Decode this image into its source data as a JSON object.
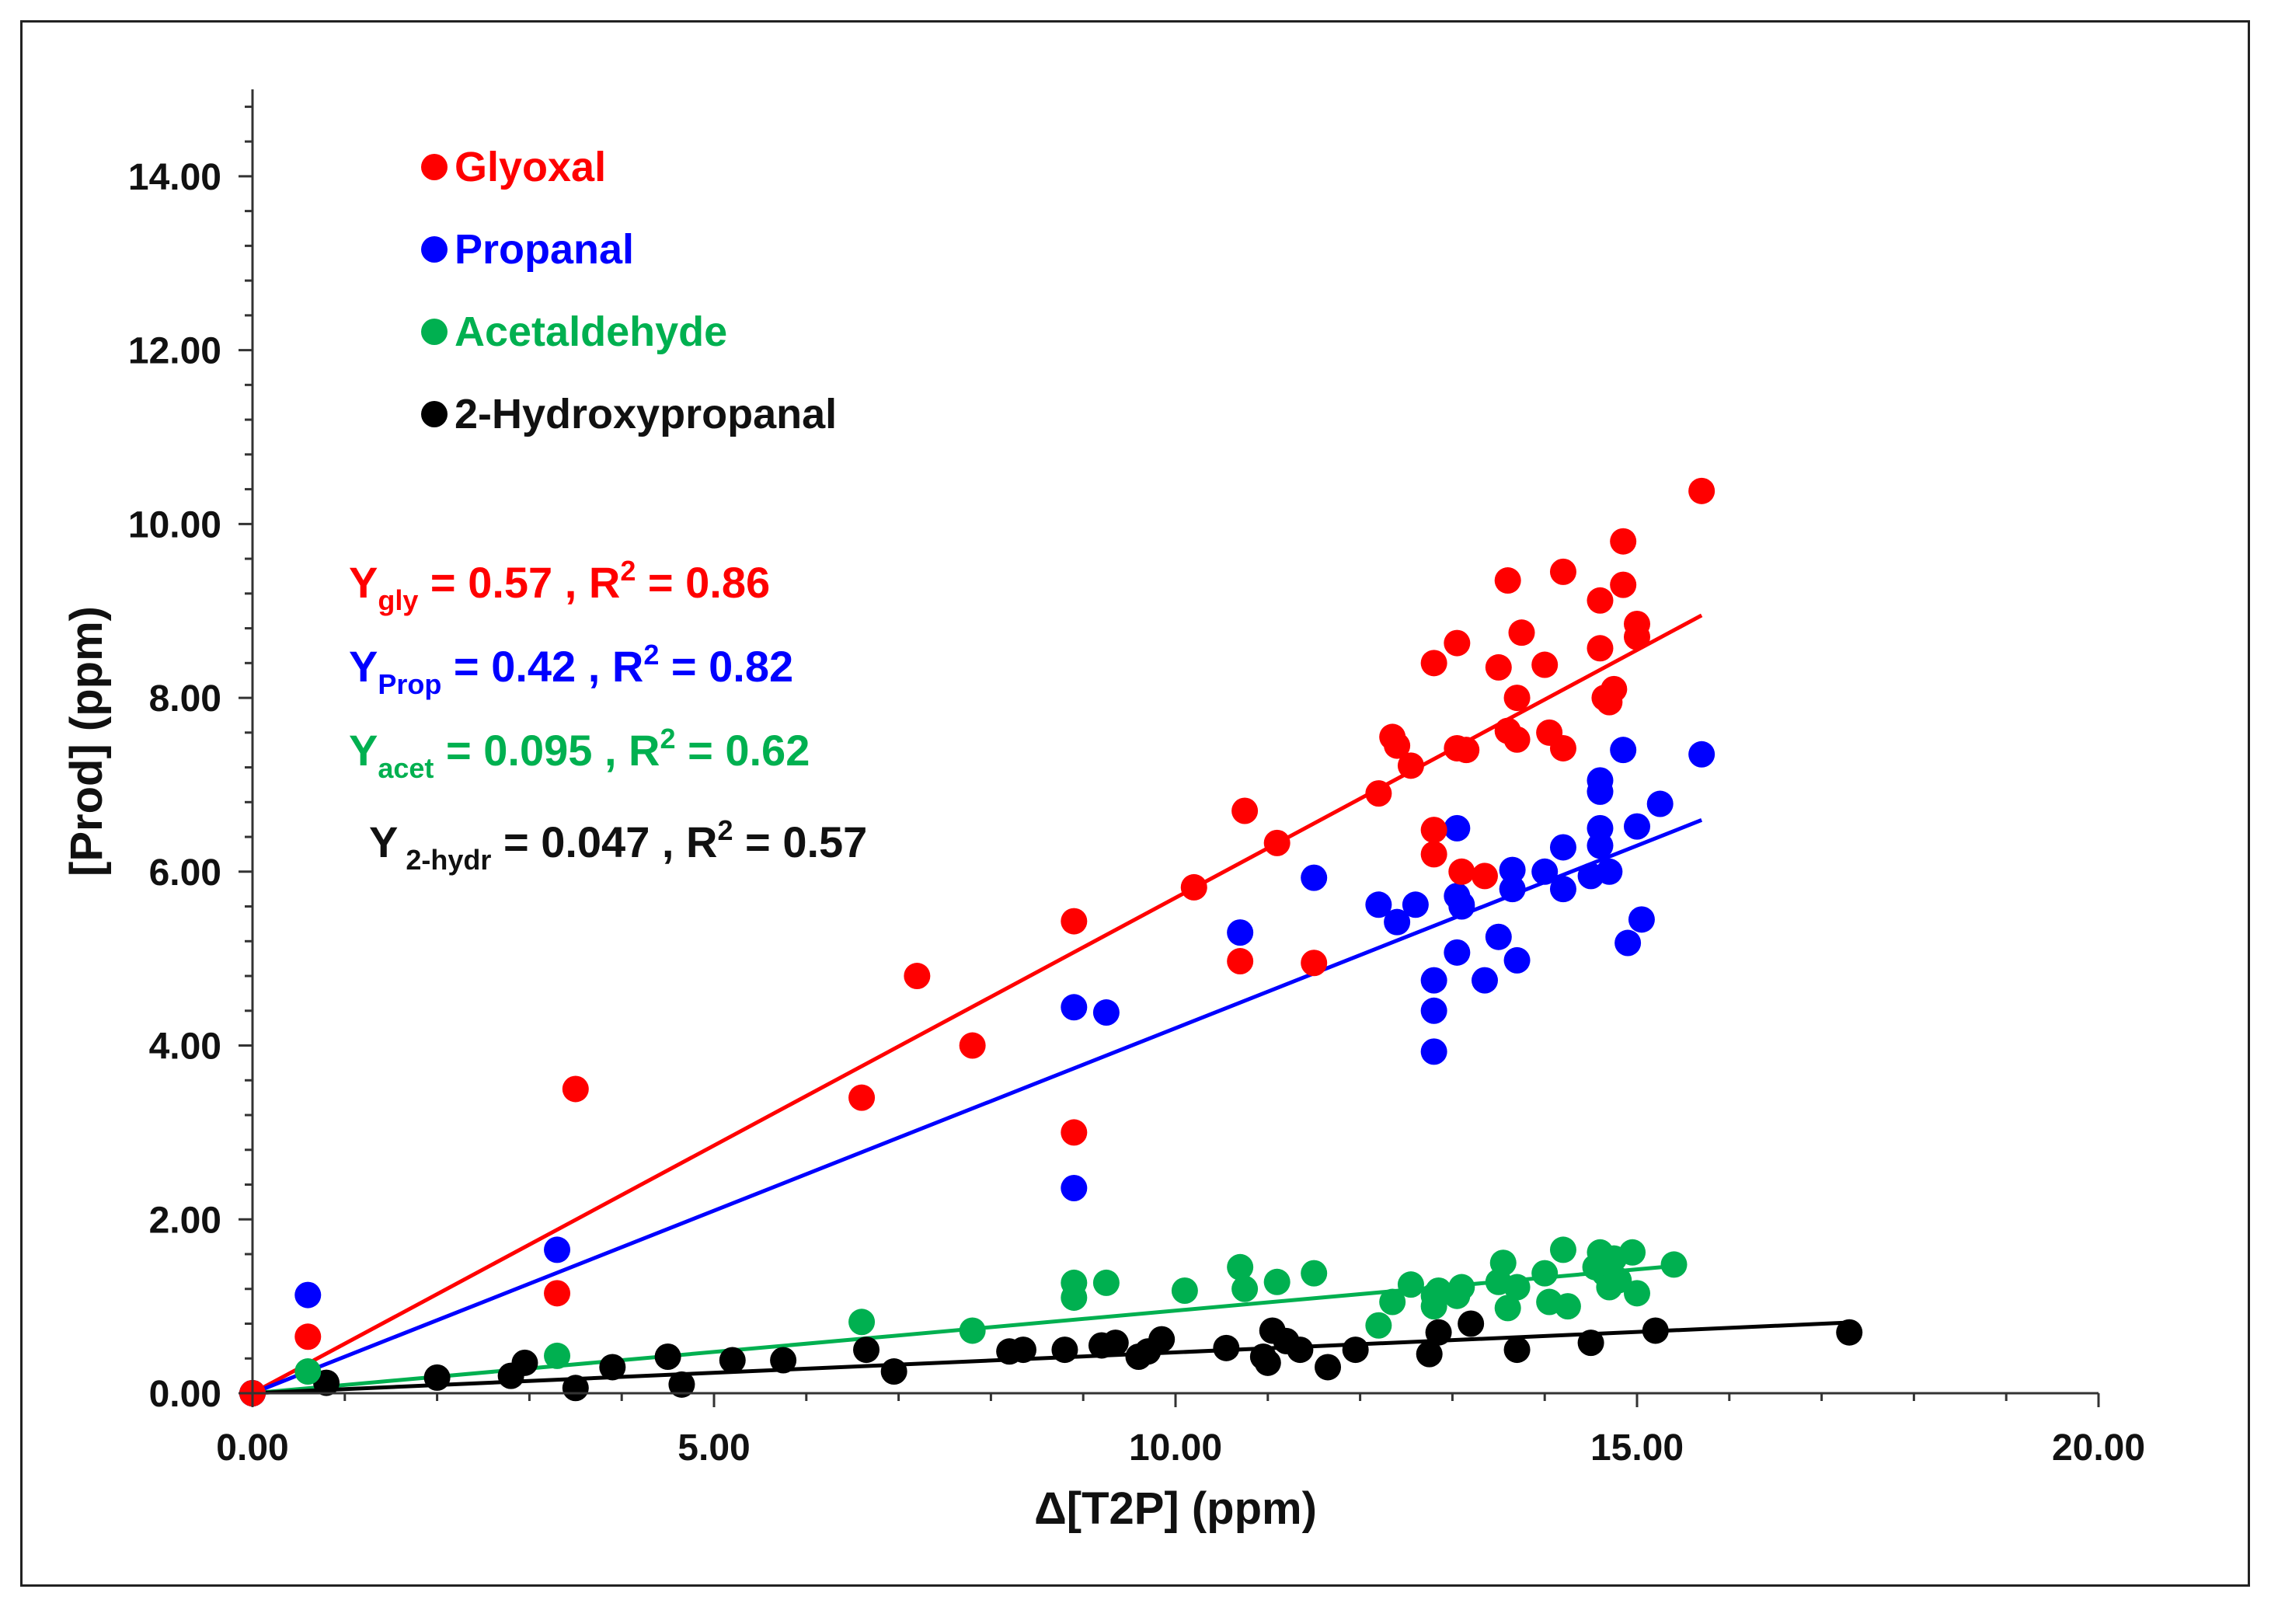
{
  "chart_data": {
    "type": "scatter",
    "xlabel": "Δ[T2P] (ppm)",
    "ylabel": "[Prod] (ppm)",
    "xlim": [
      0,
      20
    ],
    "ylim": [
      0,
      15
    ],
    "x_ticks": [
      "0.00",
      "5.00",
      "10.00",
      "15.00",
      "20.00"
    ],
    "y_ticks": [
      "0.00",
      "2.00",
      "4.00",
      "6.00",
      "8.00",
      "10.00",
      "12.00",
      "14.00"
    ],
    "x_tick_values": [
      0,
      5,
      10,
      15,
      20
    ],
    "y_tick_values": [
      0,
      2,
      4,
      6,
      8,
      10,
      12,
      14
    ],
    "legend_position": "top-left",
    "series": [
      {
        "name": "Glyoxal",
        "color": "#ff0000",
        "slope": 0.57,
        "fit_range": [
          0,
          15.7
        ],
        "equation": {
          "y": "Y",
          "sub": "gly",
          "rest": " = 0.57 , R",
          "sup": "2",
          "tail": " = 0.86"
        },
        "points": [
          [
            0,
            0
          ],
          [
            0.6,
            0.65
          ],
          [
            3.3,
            1.15
          ],
          [
            3.5,
            3.5
          ],
          [
            6.6,
            3.4
          ],
          [
            7.2,
            4.8
          ],
          [
            7.8,
            4.0
          ],
          [
            8.9,
            5.43
          ],
          [
            8.9,
            3.0
          ],
          [
            10.2,
            5.82
          ],
          [
            10.7,
            4.97
          ],
          [
            10.75,
            6.7
          ],
          [
            11.1,
            6.33
          ],
          [
            11.5,
            4.95
          ],
          [
            12.2,
            6.9
          ],
          [
            12.35,
            7.55
          ],
          [
            12.4,
            7.45
          ],
          [
            12.55,
            7.22
          ],
          [
            12.8,
            8.4
          ],
          [
            12.8,
            6.2
          ],
          [
            12.8,
            6.48
          ],
          [
            13.05,
            8.63
          ],
          [
            13.05,
            7.42
          ],
          [
            13.15,
            7.4
          ],
          [
            13.1,
            6.0
          ],
          [
            13.35,
            5.95
          ],
          [
            13.5,
            8.35
          ],
          [
            13.6,
            7.62
          ],
          [
            13.6,
            9.35
          ],
          [
            13.7,
            7.52
          ],
          [
            13.7,
            8.0
          ],
          [
            13.75,
            8.75
          ],
          [
            14.0,
            8.38
          ],
          [
            14.05,
            7.6
          ],
          [
            14.2,
            9.45
          ],
          [
            14.2,
            7.42
          ],
          [
            14.6,
            8.57
          ],
          [
            14.6,
            9.12
          ],
          [
            14.65,
            8.0
          ],
          [
            14.7,
            7.95
          ],
          [
            14.75,
            8.1
          ],
          [
            14.85,
            9.3
          ],
          [
            14.85,
            9.8
          ],
          [
            15.0,
            8.7
          ],
          [
            15.0,
            8.85
          ],
          [
            15.7,
            10.38
          ]
        ]
      },
      {
        "name": "Propanal",
        "color": "#0000ff",
        "slope": 0.42,
        "fit_range": [
          0,
          15.7
        ],
        "equation": {
          "y": "Y",
          "sub": "Prop",
          "rest": " = 0.42 , R",
          "sup": "2",
          "tail": " = 0.82"
        },
        "points": [
          [
            0,
            0
          ],
          [
            0.6,
            1.13
          ],
          [
            3.3,
            1.65
          ],
          [
            8.9,
            4.44
          ],
          [
            8.9,
            2.36
          ],
          [
            9.25,
            4.38
          ],
          [
            10.7,
            5.3
          ],
          [
            11.5,
            5.93
          ],
          [
            12.2,
            5.62
          ],
          [
            12.4,
            5.42
          ],
          [
            12.6,
            5.62
          ],
          [
            12.8,
            4.75
          ],
          [
            12.8,
            4.4
          ],
          [
            12.8,
            3.93
          ],
          [
            13.05,
            6.5
          ],
          [
            13.05,
            5.72
          ],
          [
            13.05,
            5.07
          ],
          [
            13.1,
            5.62
          ],
          [
            13.1,
            5.6
          ],
          [
            13.35,
            4.75
          ],
          [
            13.5,
            5.25
          ],
          [
            13.65,
            6.02
          ],
          [
            13.65,
            5.8
          ],
          [
            13.7,
            4.98
          ],
          [
            14.0,
            6.0
          ],
          [
            14.2,
            6.28
          ],
          [
            14.2,
            5.8
          ],
          [
            14.5,
            5.95
          ],
          [
            14.6,
            6.3
          ],
          [
            14.6,
            6.92
          ],
          [
            14.6,
            7.05
          ],
          [
            14.6,
            6.5
          ],
          [
            14.7,
            6.0
          ],
          [
            14.85,
            7.4
          ],
          [
            14.9,
            5.18
          ],
          [
            15.0,
            6.52
          ],
          [
            15.05,
            5.45
          ],
          [
            15.25,
            6.78
          ],
          [
            15.7,
            7.35
          ]
        ]
      },
      {
        "name": "Acetaldehyde",
        "color": "#00b050",
        "slope": 0.095,
        "fit_range": [
          0,
          15.4
        ],
        "equation": {
          "y": "Y",
          "sub": "acet",
          "rest": " = 0.095 , R",
          "sup": "2",
          "tail": " = 0.62"
        },
        "points": [
          [
            0,
            0
          ],
          [
            0.6,
            0.25
          ],
          [
            3.3,
            0.43
          ],
          [
            6.6,
            0.82
          ],
          [
            7.8,
            0.72
          ],
          [
            8.9,
            1.1
          ],
          [
            8.9,
            1.27
          ],
          [
            9.25,
            1.27
          ],
          [
            10.1,
            1.18
          ],
          [
            10.7,
            1.45
          ],
          [
            10.75,
            1.2
          ],
          [
            11.1,
            1.28
          ],
          [
            11.5,
            1.38
          ],
          [
            12.2,
            0.78
          ],
          [
            12.35,
            1.05
          ],
          [
            12.55,
            1.25
          ],
          [
            12.8,
            1.12
          ],
          [
            12.8,
            1.0
          ],
          [
            12.85,
            1.18
          ],
          [
            13.05,
            1.12
          ],
          [
            13.1,
            1.22
          ],
          [
            13.5,
            1.28
          ],
          [
            13.55,
            1.5
          ],
          [
            13.6,
            0.98
          ],
          [
            13.7,
            1.22
          ],
          [
            14.0,
            1.38
          ],
          [
            14.05,
            1.05
          ],
          [
            14.2,
            1.65
          ],
          [
            14.25,
            1.0
          ],
          [
            14.55,
            1.45
          ],
          [
            14.6,
            1.62
          ],
          [
            14.65,
            1.38
          ],
          [
            14.7,
            1.22
          ],
          [
            14.75,
            1.55
          ],
          [
            14.8,
            1.3
          ],
          [
            14.95,
            1.62
          ],
          [
            15.0,
            1.15
          ],
          [
            15.4,
            1.48
          ]
        ]
      },
      {
        "name": "2-Hydroxypropanal",
        "color": "#000000",
        "slope": 0.047,
        "fit_range": [
          0,
          17.3
        ],
        "equation": {
          "y": "Y",
          "sub": "2-hydr",
          "rest": " = 0.047 , R",
          "sup": "2",
          "tail": " = 0.57",
          "spaced": true
        },
        "points": [
          [
            0,
            0
          ],
          [
            0.8,
            0.12
          ],
          [
            2.0,
            0.18
          ],
          [
            2.8,
            0.2
          ],
          [
            2.95,
            0.35
          ],
          [
            3.5,
            0.06
          ],
          [
            3.9,
            0.3
          ],
          [
            4.5,
            0.42
          ],
          [
            4.65,
            0.1
          ],
          [
            5.2,
            0.38
          ],
          [
            5.75,
            0.38
          ],
          [
            6.65,
            0.5
          ],
          [
            6.95,
            0.25
          ],
          [
            8.2,
            0.48
          ],
          [
            8.35,
            0.5
          ],
          [
            8.8,
            0.5
          ],
          [
            9.2,
            0.55
          ],
          [
            9.35,
            0.58
          ],
          [
            9.6,
            0.42
          ],
          [
            9.7,
            0.48
          ],
          [
            9.85,
            0.62
          ],
          [
            10.55,
            0.52
          ],
          [
            10.95,
            0.42
          ],
          [
            11.0,
            0.35
          ],
          [
            11.05,
            0.72
          ],
          [
            11.2,
            0.6
          ],
          [
            11.35,
            0.5
          ],
          [
            11.65,
            0.3
          ],
          [
            11.95,
            0.5
          ],
          [
            12.75,
            0.45
          ],
          [
            12.85,
            0.7
          ],
          [
            13.2,
            0.8
          ],
          [
            13.7,
            0.5
          ],
          [
            14.5,
            0.58
          ],
          [
            15.2,
            0.72
          ],
          [
            17.3,
            0.7
          ]
        ]
      }
    ]
  }
}
